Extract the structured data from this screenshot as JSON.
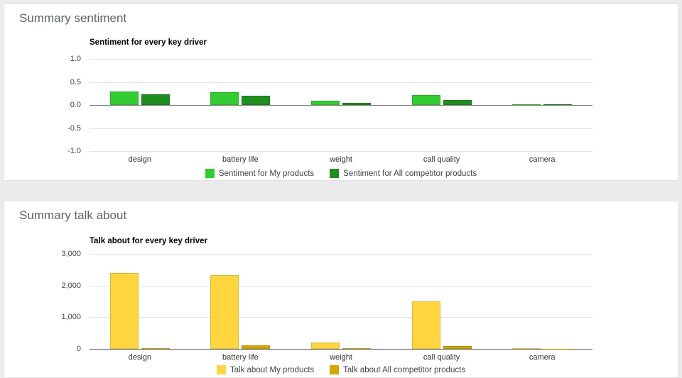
{
  "page": {
    "background": "#ebebeb"
  },
  "panels": [
    {
      "title": "Summary sentiment"
    },
    {
      "title": "Summary talk about"
    }
  ],
  "chart_data": [
    {
      "type": "bar",
      "title": "Sentiment for every key driver",
      "categories": [
        "design",
        "battery life",
        "weight",
        "call quality",
        "camera"
      ],
      "series": [
        {
          "name": "Sentiment for My products",
          "color": "#33cc33",
          "values": [
            0.3,
            0.27,
            0.1,
            0.22,
            0.01
          ]
        },
        {
          "name": "Sentiment for All competitor products",
          "color": "#1e8e1e",
          "values": [
            0.23,
            0.2,
            0.04,
            0.11,
            0.01
          ]
        }
      ],
      "xlabel": "",
      "ylabel": "",
      "ylim": [
        -1,
        1
      ],
      "yticks": [
        {
          "label": "1.0",
          "value": 1
        },
        {
          "label": "0.5",
          "value": 0.5
        },
        {
          "label": "0.0",
          "value": 0
        },
        {
          "label": "-0.5",
          "value": -0.5
        },
        {
          "label": "-1.0",
          "value": -1
        }
      ],
      "grid": true,
      "legend_position": "bottom"
    },
    {
      "type": "bar",
      "title": "Talk about for every key driver",
      "categories": [
        "design",
        "battery life",
        "weight",
        "call quality",
        "camera"
      ],
      "series": [
        {
          "name": "Talk about My products",
          "color": "#ffd640",
          "values": [
            2400,
            2330,
            200,
            1500,
            15
          ]
        },
        {
          "name": "Talk about All competitor products",
          "color": "#d1a700",
          "values": [
            30,
            110,
            25,
            100,
            10
          ]
        }
      ],
      "xlabel": "",
      "ylabel": "",
      "ylim": [
        0,
        3000
      ],
      "yticks": [
        {
          "label": "3,000",
          "value": 3000
        },
        {
          "label": "2,000",
          "value": 2000
        },
        {
          "label": "1,000",
          "value": 1000
        },
        {
          "label": "0",
          "value": 0
        }
      ],
      "grid": true,
      "legend_position": "bottom"
    }
  ]
}
